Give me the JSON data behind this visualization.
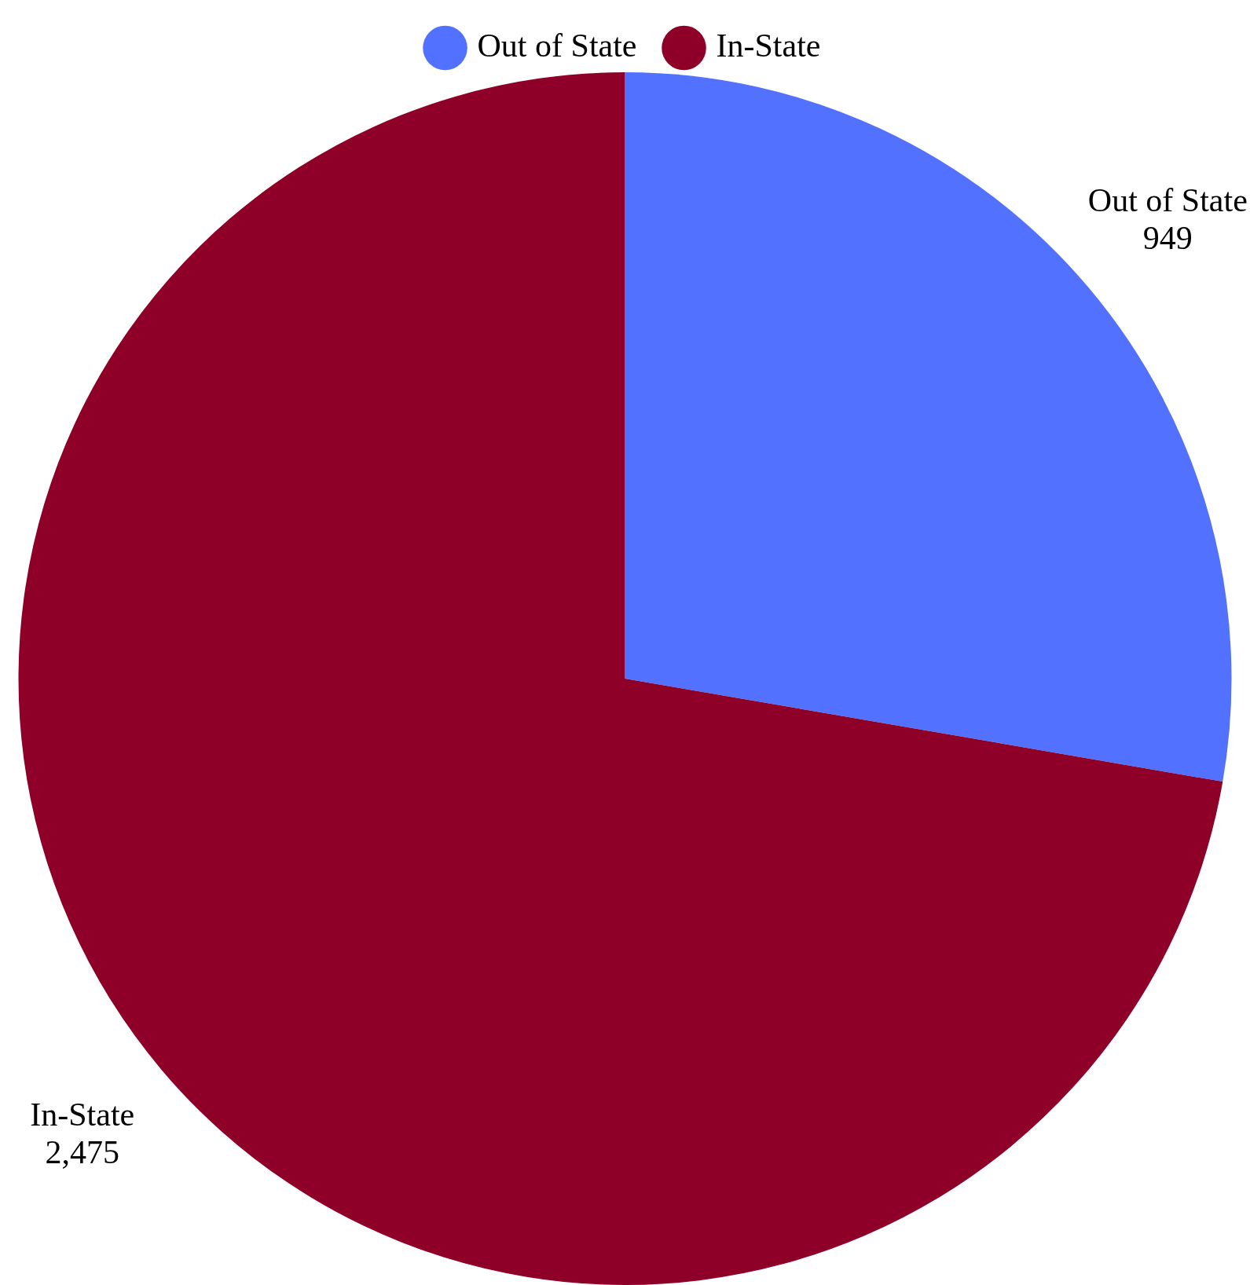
{
  "chart_data": {
    "type": "pie",
    "categories": [
      "Out of State",
      "In-State"
    ],
    "values": [
      949,
      2475
    ],
    "value_labels": [
      "949",
      "2,475"
    ],
    "colors": [
      "#5271ff",
      "#8e0028"
    ],
    "legend": "top"
  }
}
